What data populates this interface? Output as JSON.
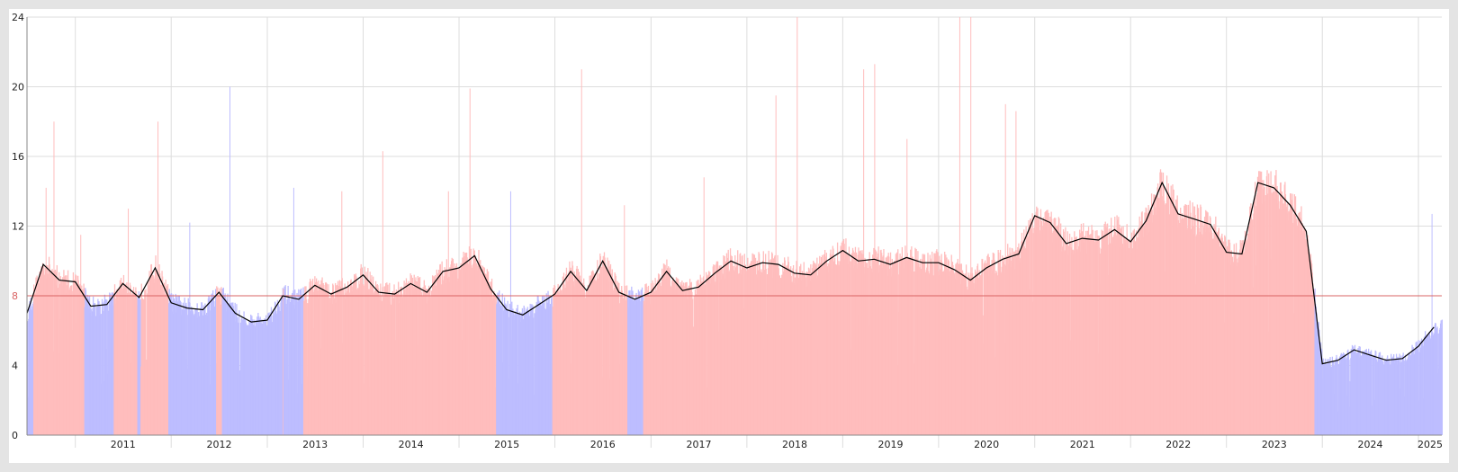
{
  "chart_data": {
    "type": "bar",
    "title": "",
    "xlabel": "",
    "ylabel": "",
    "ylim": [
      0,
      24
    ],
    "y_ticks": [
      0,
      4,
      8,
      12,
      16,
      20,
      24
    ],
    "grid": true,
    "legend": "none",
    "x_range": [
      "2010-07-01",
      "2025-03-31"
    ],
    "reference_line": {
      "value": 8,
      "label": "8",
      "color": "#d96464"
    },
    "colors": {
      "above_reference": "#ffbdbd",
      "below_reference": "#bdbdff",
      "moving_average": "#000000",
      "grid": "#dddddd",
      "frame_background": "#ffffff",
      "page_background": "#e4e4e4"
    },
    "year_labels": [
      "2011",
      "2012",
      "2013",
      "2014",
      "2015",
      "2016",
      "2017",
      "2018",
      "2019",
      "2020",
      "2021",
      "2022",
      "2023",
      "2024",
      "2025"
    ],
    "year_start_dates": [
      "2011-01-01",
      "2012-01-01",
      "2013-01-01",
      "2014-01-01",
      "2015-01-01",
      "2016-01-01",
      "2017-01-01",
      "2018-01-01",
      "2019-01-01",
      "2020-01-01",
      "2021-01-01",
      "2022-01-01",
      "2023-01-01",
      "2024-01-01",
      "2025-01-01"
    ],
    "year_end_dates": [
      "2011-12-31",
      "2012-12-31",
      "2013-12-31",
      "2014-12-31",
      "2015-12-31",
      "2016-12-31",
      "2017-12-31",
      "2018-12-31",
      "2019-12-31",
      "2020-12-31",
      "2021-12-31",
      "2022-12-31",
      "2023-12-31",
      "2024-12-31",
      "2025-03-31"
    ],
    "series": [
      {
        "kind": "daily_bars",
        "x": [
          "2010-07-01",
          "2010-09-01",
          "2010-11-01",
          "2011-01-01",
          "2011-03-01",
          "2011-05-01",
          "2011-07-01",
          "2011-09-01",
          "2011-11-01",
          "2012-01-01",
          "2012-03-01",
          "2012-05-01",
          "2012-07-01",
          "2012-09-01",
          "2012-11-01",
          "2013-01-01",
          "2013-03-01",
          "2013-05-01",
          "2013-07-01",
          "2013-09-01",
          "2013-11-01",
          "2014-01-01",
          "2014-03-01",
          "2014-05-01",
          "2014-07-01",
          "2014-09-01",
          "2014-11-01",
          "2015-01-01",
          "2015-03-01",
          "2015-05-01",
          "2015-07-01",
          "2015-09-01",
          "2015-11-01",
          "2016-01-01",
          "2016-03-01",
          "2016-05-01",
          "2016-07-01",
          "2016-09-01",
          "2016-11-01",
          "2017-01-01",
          "2017-03-01",
          "2017-05-01",
          "2017-07-01",
          "2017-09-01",
          "2017-11-01",
          "2018-01-01",
          "2018-03-01",
          "2018-05-01",
          "2018-07-01",
          "2018-09-01",
          "2018-11-01",
          "2019-01-01",
          "2019-03-01",
          "2019-05-01",
          "2019-07-01",
          "2019-09-01",
          "2019-11-01",
          "2020-01-01",
          "2020-03-01",
          "2020-05-01",
          "2020-07-01",
          "2020-09-01",
          "2020-11-01",
          "2021-01-01",
          "2021-03-01",
          "2021-05-01",
          "2021-07-01",
          "2021-09-01",
          "2021-11-01",
          "2022-01-01",
          "2022-03-01",
          "2022-05-01",
          "2022-07-01",
          "2022-09-01",
          "2022-11-01",
          "2023-01-01",
          "2023-03-01",
          "2023-05-01",
          "2023-07-01",
          "2023-09-01",
          "2023-11-01",
          "2024-01-01",
          "2024-03-01",
          "2024-05-01",
          "2024-07-01",
          "2024-09-01",
          "2024-11-01",
          "2025-01-01",
          "2025-03-01"
        ],
        "values": [
          7.0,
          9.8,
          8.9,
          8.8,
          7.4,
          7.5,
          8.7,
          7.9,
          9.6,
          7.6,
          7.3,
          7.2,
          8.2,
          7.0,
          6.5,
          6.6,
          8.0,
          7.8,
          8.6,
          8.1,
          8.5,
          9.2,
          8.2,
          8.1,
          8.7,
          8.2,
          9.4,
          9.6,
          10.3,
          8.4,
          7.2,
          6.9,
          7.5,
          8.1,
          9.4,
          8.3,
          10.0,
          8.2,
          7.8,
          8.2,
          9.4,
          8.3,
          8.5,
          9.3,
          10.0,
          9.6,
          9.9,
          9.8,
          9.3,
          9.2,
          10.0,
          10.6,
          10.0,
          10.1,
          9.8,
          10.2,
          9.9,
          9.9,
          9.5,
          8.9,
          9.6,
          10.1,
          10.4,
          12.6,
          12.2,
          11.0,
          11.3,
          11.2,
          11.8,
          11.1,
          12.3,
          14.5,
          12.7,
          12.4,
          12.1,
          10.5,
          10.4,
          14.5,
          14.2,
          13.2,
          11.7,
          4.1,
          4.3,
          4.9,
          4.6,
          4.3,
          4.4,
          5.1,
          6.2
        ],
        "spikes": [
          {
            "x": "2010-09-10",
            "value": 14.2
          },
          {
            "x": "2010-10-10",
            "value": 18.0
          },
          {
            "x": "2011-01-20",
            "value": 11.5
          },
          {
            "x": "2011-07-20",
            "value": 13.0
          },
          {
            "x": "2011-11-10",
            "value": 18.0
          },
          {
            "x": "2012-03-10",
            "value": 12.2
          },
          {
            "x": "2012-08-10",
            "value": 20.0
          },
          {
            "x": "2013-04-10",
            "value": 14.2
          },
          {
            "x": "2013-10-10",
            "value": 14.0
          },
          {
            "x": "2014-03-15",
            "value": 16.3
          },
          {
            "x": "2014-11-20",
            "value": 14.0
          },
          {
            "x": "2015-02-10",
            "value": 19.9
          },
          {
            "x": "2015-07-15",
            "value": 14.0
          },
          {
            "x": "2016-04-10",
            "value": 21.0
          },
          {
            "x": "2016-09-20",
            "value": 13.2
          },
          {
            "x": "2017-07-20",
            "value": 14.8
          },
          {
            "x": "2018-04-20",
            "value": 19.5
          },
          {
            "x": "2018-07-10",
            "value": 25.0
          },
          {
            "x": "2019-03-20",
            "value": 21.0
          },
          {
            "x": "2019-05-01",
            "value": 21.3
          },
          {
            "x": "2019-09-01",
            "value": 17.0
          },
          {
            "x": "2020-03-20",
            "value": 24.0
          },
          {
            "x": "2020-05-01",
            "value": 25.0
          },
          {
            "x": "2020-09-10",
            "value": 19.0
          },
          {
            "x": "2020-10-20",
            "value": 18.6
          },
          {
            "x": "2025-02-20",
            "value": 12.7
          }
        ]
      },
      {
        "kind": "moving_average",
        "x": [
          "2010-07-01",
          "2010-09-01",
          "2010-11-01",
          "2011-01-01",
          "2011-03-01",
          "2011-05-01",
          "2011-07-01",
          "2011-09-01",
          "2011-11-01",
          "2012-01-01",
          "2012-03-01",
          "2012-05-01",
          "2012-07-01",
          "2012-09-01",
          "2012-11-01",
          "2013-01-01",
          "2013-03-01",
          "2013-05-01",
          "2013-07-01",
          "2013-09-01",
          "2013-11-01",
          "2014-01-01",
          "2014-03-01",
          "2014-05-01",
          "2014-07-01",
          "2014-09-01",
          "2014-11-01",
          "2015-01-01",
          "2015-03-01",
          "2015-05-01",
          "2015-07-01",
          "2015-09-01",
          "2015-11-01",
          "2016-01-01",
          "2016-03-01",
          "2016-05-01",
          "2016-07-01",
          "2016-09-01",
          "2016-11-01",
          "2017-01-01",
          "2017-03-01",
          "2017-05-01",
          "2017-07-01",
          "2017-09-01",
          "2017-11-01",
          "2018-01-01",
          "2018-03-01",
          "2018-05-01",
          "2018-07-01",
          "2018-09-01",
          "2018-11-01",
          "2019-01-01",
          "2019-03-01",
          "2019-05-01",
          "2019-07-01",
          "2019-09-01",
          "2019-11-01",
          "2020-01-01",
          "2020-03-01",
          "2020-05-01",
          "2020-07-01",
          "2020-09-01",
          "2020-11-01",
          "2021-01-01",
          "2021-03-01",
          "2021-05-01",
          "2021-07-01",
          "2021-09-01",
          "2021-11-01",
          "2022-01-01",
          "2022-03-01",
          "2022-05-01",
          "2022-07-01",
          "2022-09-01",
          "2022-11-01",
          "2023-01-01",
          "2023-03-01",
          "2023-05-01",
          "2023-07-01",
          "2023-09-01",
          "2023-11-01",
          "2024-01-01",
          "2024-03-01",
          "2024-05-01",
          "2024-07-01",
          "2024-09-01",
          "2024-11-01",
          "2025-01-01",
          "2025-03-01"
        ],
        "values": [
          7.0,
          9.8,
          8.9,
          8.8,
          7.4,
          7.5,
          8.7,
          7.9,
          9.6,
          7.6,
          7.3,
          7.2,
          8.2,
          7.0,
          6.5,
          6.6,
          8.0,
          7.8,
          8.6,
          8.1,
          8.5,
          9.2,
          8.2,
          8.1,
          8.7,
          8.2,
          9.4,
          9.6,
          10.3,
          8.4,
          7.2,
          6.9,
          7.5,
          8.1,
          9.4,
          8.3,
          10.0,
          8.2,
          7.8,
          8.2,
          9.4,
          8.3,
          8.5,
          9.3,
          10.0,
          9.6,
          9.9,
          9.8,
          9.3,
          9.2,
          10.0,
          10.6,
          10.0,
          10.1,
          9.8,
          10.2,
          9.9,
          9.9,
          9.5,
          8.9,
          9.6,
          10.1,
          10.4,
          12.6,
          12.2,
          11.0,
          11.3,
          11.2,
          11.8,
          11.1,
          12.3,
          14.5,
          12.7,
          12.4,
          12.1,
          10.5,
          10.4,
          14.5,
          14.2,
          13.2,
          11.7,
          4.1,
          4.3,
          4.9,
          4.6,
          4.3,
          4.4,
          5.1,
          6.2
        ]
      }
    ]
  }
}
